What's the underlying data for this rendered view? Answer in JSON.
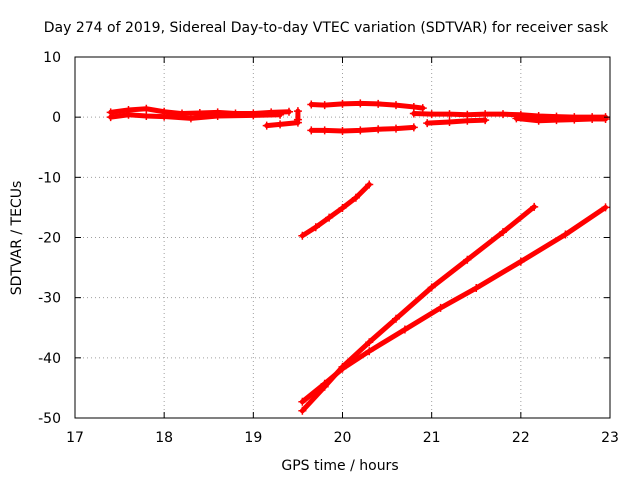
{
  "chart_data": {
    "type": "scatter",
    "title": "Day 274 of 2019, Sidereal Day-to-day VTEC variation (SDTVAR) for receiver sask",
    "xlabel": "GPS time / hours",
    "ylabel": "SDTVAR / TECUs",
    "xlim": [
      17,
      23
    ],
    "ylim": [
      -50,
      10
    ],
    "xticks": [
      "17",
      "18",
      "19",
      "20",
      "21",
      "22",
      "23"
    ],
    "yticks": [
      "10",
      "0",
      "-10",
      "-20",
      "-30",
      "-40",
      "-50"
    ],
    "grid": true,
    "marker": "plus",
    "color": "#ff0000",
    "series": [
      {
        "points": [
          [
            17.4,
            0.8
          ],
          [
            17.6,
            1.2
          ],
          [
            17.8,
            1.4
          ],
          [
            18.0,
            0.9
          ],
          [
            18.2,
            0.6
          ],
          [
            18.4,
            0.7
          ],
          [
            18.6,
            0.8
          ],
          [
            18.8,
            0.6
          ],
          [
            19.0,
            0.6
          ],
          [
            19.2,
            0.8
          ],
          [
            19.4,
            0.9
          ]
        ]
      },
      {
        "points": [
          [
            17.4,
            0.0
          ],
          [
            17.6,
            0.4
          ],
          [
            17.8,
            0.2
          ],
          [
            18.0,
            0.1
          ],
          [
            18.3,
            -0.2
          ],
          [
            18.6,
            0.2
          ],
          [
            19.0,
            0.3
          ],
          [
            19.3,
            0.4
          ]
        ]
      },
      {
        "points": [
          [
            19.15,
            -1.4
          ],
          [
            19.3,
            -1.2
          ],
          [
            19.5,
            -0.9
          ]
        ]
      },
      {
        "points": [
          [
            19.5,
            -0.4
          ],
          [
            19.5,
            1.0
          ]
        ]
      },
      {
        "points": [
          [
            19.65,
            2.1
          ],
          [
            19.8,
            2.0
          ],
          [
            20.0,
            2.2
          ],
          [
            20.2,
            2.3
          ],
          [
            20.4,
            2.2
          ],
          [
            20.6,
            2.0
          ],
          [
            20.8,
            1.7
          ],
          [
            20.9,
            1.5
          ]
        ]
      },
      {
        "points": [
          [
            19.65,
            -2.2
          ],
          [
            19.8,
            -2.2
          ],
          [
            20.0,
            -2.3
          ],
          [
            20.2,
            -2.2
          ],
          [
            20.4,
            -2.0
          ],
          [
            20.6,
            -1.9
          ],
          [
            20.8,
            -1.7
          ]
        ]
      },
      {
        "points": [
          [
            20.8,
            0.6
          ],
          [
            21.0,
            0.5
          ],
          [
            21.2,
            0.5
          ],
          [
            21.4,
            0.4
          ],
          [
            21.6,
            0.5
          ],
          [
            21.8,
            0.5
          ],
          [
            22.0,
            0.4
          ],
          [
            22.2,
            0.2
          ],
          [
            22.4,
            0.1
          ],
          [
            22.6,
            0.0
          ],
          [
            22.8,
            0.0
          ],
          [
            22.95,
            0.0
          ]
        ]
      },
      {
        "points": [
          [
            20.95,
            -1.0
          ],
          [
            21.2,
            -0.8
          ],
          [
            21.4,
            -0.6
          ],
          [
            21.6,
            -0.5
          ]
        ]
      },
      {
        "points": [
          [
            21.95,
            -0.2
          ],
          [
            22.2,
            -0.6
          ],
          [
            22.4,
            -0.5
          ],
          [
            22.6,
            -0.4
          ],
          [
            22.8,
            -0.3
          ],
          [
            22.95,
            -0.3
          ]
        ]
      },
      {
        "points": [
          [
            19.55,
            -19.7
          ],
          [
            19.7,
            -18.3
          ],
          [
            19.85,
            -16.7
          ],
          [
            20.0,
            -15.1
          ],
          [
            20.15,
            -13.4
          ],
          [
            20.3,
            -11.2
          ]
        ]
      },
      {
        "points": [
          [
            19.55,
            -48.8
          ],
          [
            19.8,
            -44.8
          ],
          [
            20.0,
            -41.5
          ],
          [
            20.3,
            -37.4
          ],
          [
            20.6,
            -33.5
          ],
          [
            21.0,
            -28.3
          ],
          [
            21.4,
            -23.7
          ],
          [
            21.8,
            -19.1
          ],
          [
            22.15,
            -14.9
          ]
        ]
      },
      {
        "points": [
          [
            19.55,
            -47.3
          ],
          [
            19.8,
            -44.3
          ],
          [
            20.0,
            -41.8
          ],
          [
            20.3,
            -38.9
          ],
          [
            20.7,
            -35.3
          ],
          [
            21.1,
            -31.7
          ],
          [
            21.5,
            -28.4
          ],
          [
            22.0,
            -24.0
          ],
          [
            22.5,
            -19.5
          ],
          [
            22.95,
            -15.0
          ]
        ]
      }
    ]
  }
}
